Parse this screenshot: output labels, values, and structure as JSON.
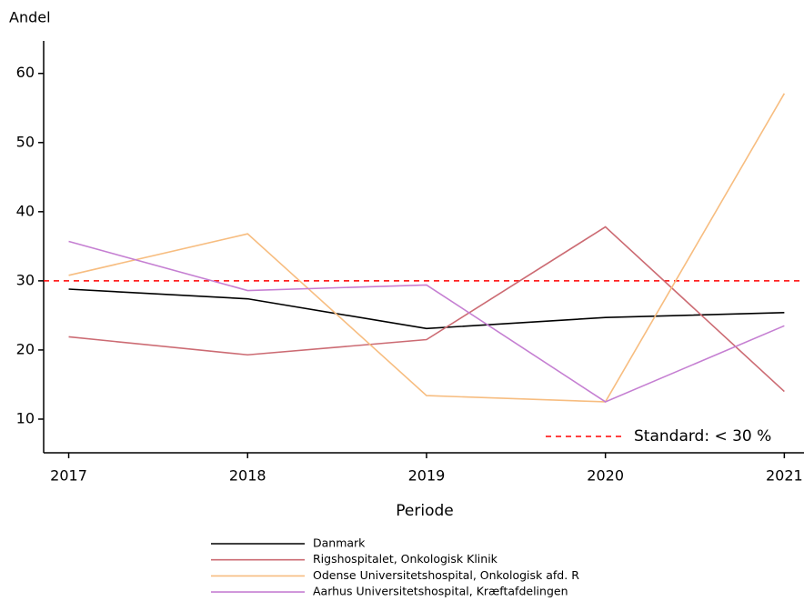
{
  "chart_data": {
    "type": "line",
    "y_label": "Andel",
    "x_label": "Periode",
    "x": [
      2017,
      2018,
      2019,
      2020,
      2021
    ],
    "xlim": [
      2016.86,
      2021.11
    ],
    "xticks": [
      2017,
      2018,
      2019,
      2020,
      2021
    ],
    "ylim": [
      5.13,
      64.7
    ],
    "yticks": [
      10,
      20,
      30,
      40,
      50,
      60
    ],
    "grid": false,
    "series": [
      {
        "name": "Danmark",
        "color": "#000000",
        "values": [
          28.8,
          27.4,
          23.1,
          24.7,
          25.4
        ]
      },
      {
        "name": "Rigshospitalet, Onkologisk Klinik",
        "color": "#cc6b73",
        "values": [
          21.9,
          19.3,
          21.5,
          37.8,
          14.0
        ]
      },
      {
        "name": "Odense Universitetshospital, Onkologisk afd. R",
        "color": "#f7bd80",
        "values": [
          30.8,
          36.8,
          13.4,
          12.5,
          57.1
        ]
      },
      {
        "name": "Aarhus Universitetshospital, Kræftafdelingen",
        "color": "#c57fd2",
        "values": [
          35.7,
          28.6,
          29.4,
          12.5,
          23.5
        ]
      }
    ],
    "reference_line": {
      "value": 30,
      "label": "Standard: < 30 %",
      "color": "#ff0000"
    }
  }
}
